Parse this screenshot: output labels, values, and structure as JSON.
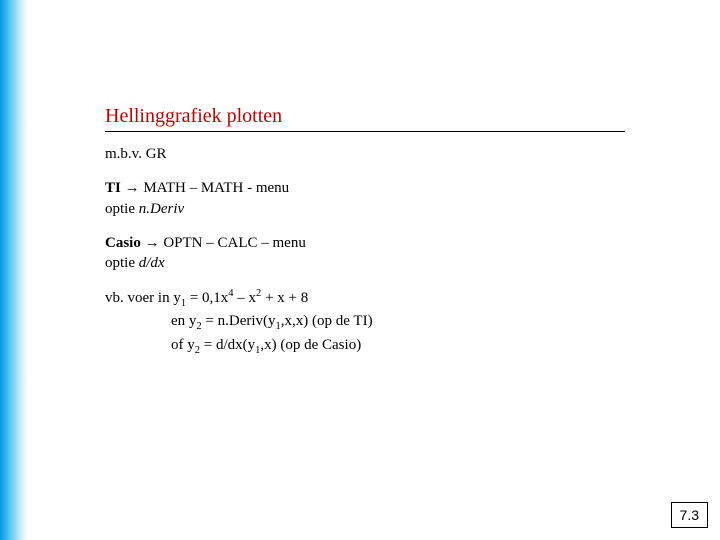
{
  "slide": {
    "title": "Hellinggrafiek plotten",
    "intro": "m.b.v. GR",
    "ti_label": "TI",
    "ti_line": " MATH – MATH - menu",
    "ti_option_prefix": "optie ",
    "ti_option_italic": "n.Deriv",
    "casio_label": "Casio",
    "casio_line": " OPTN – CALC – menu",
    "casio_option_prefix": "optie ",
    "casio_option_italic": "d/dx",
    "ex_prefix": "vb.  voer in  y",
    "ex_eq": " = 0,1x",
    "ex_eq_mid": " – x",
    "ex_eq_tail": " + x + 8",
    "ex_line2a": "en  y",
    "ex_line2b": " = n.Deriv(y",
    "ex_line2c": ",x,x)  (op de TI)",
    "ex_line3a": "of  y",
    "ex_line3b": " = d/dx(y",
    "ex_line3c": ",x)       (op de Casio)",
    "sub1": "1",
    "sub2": "2",
    "sup2": "2",
    "sup4": "4",
    "arrow": "→"
  },
  "page": "7.3",
  "style": {
    "title_color": "#c00000",
    "gradient_from": "#0099e6",
    "gradient_to": "#ffffff",
    "text_color": "#000000",
    "title_fontsize": 20,
    "body_fontsize": 15
  }
}
